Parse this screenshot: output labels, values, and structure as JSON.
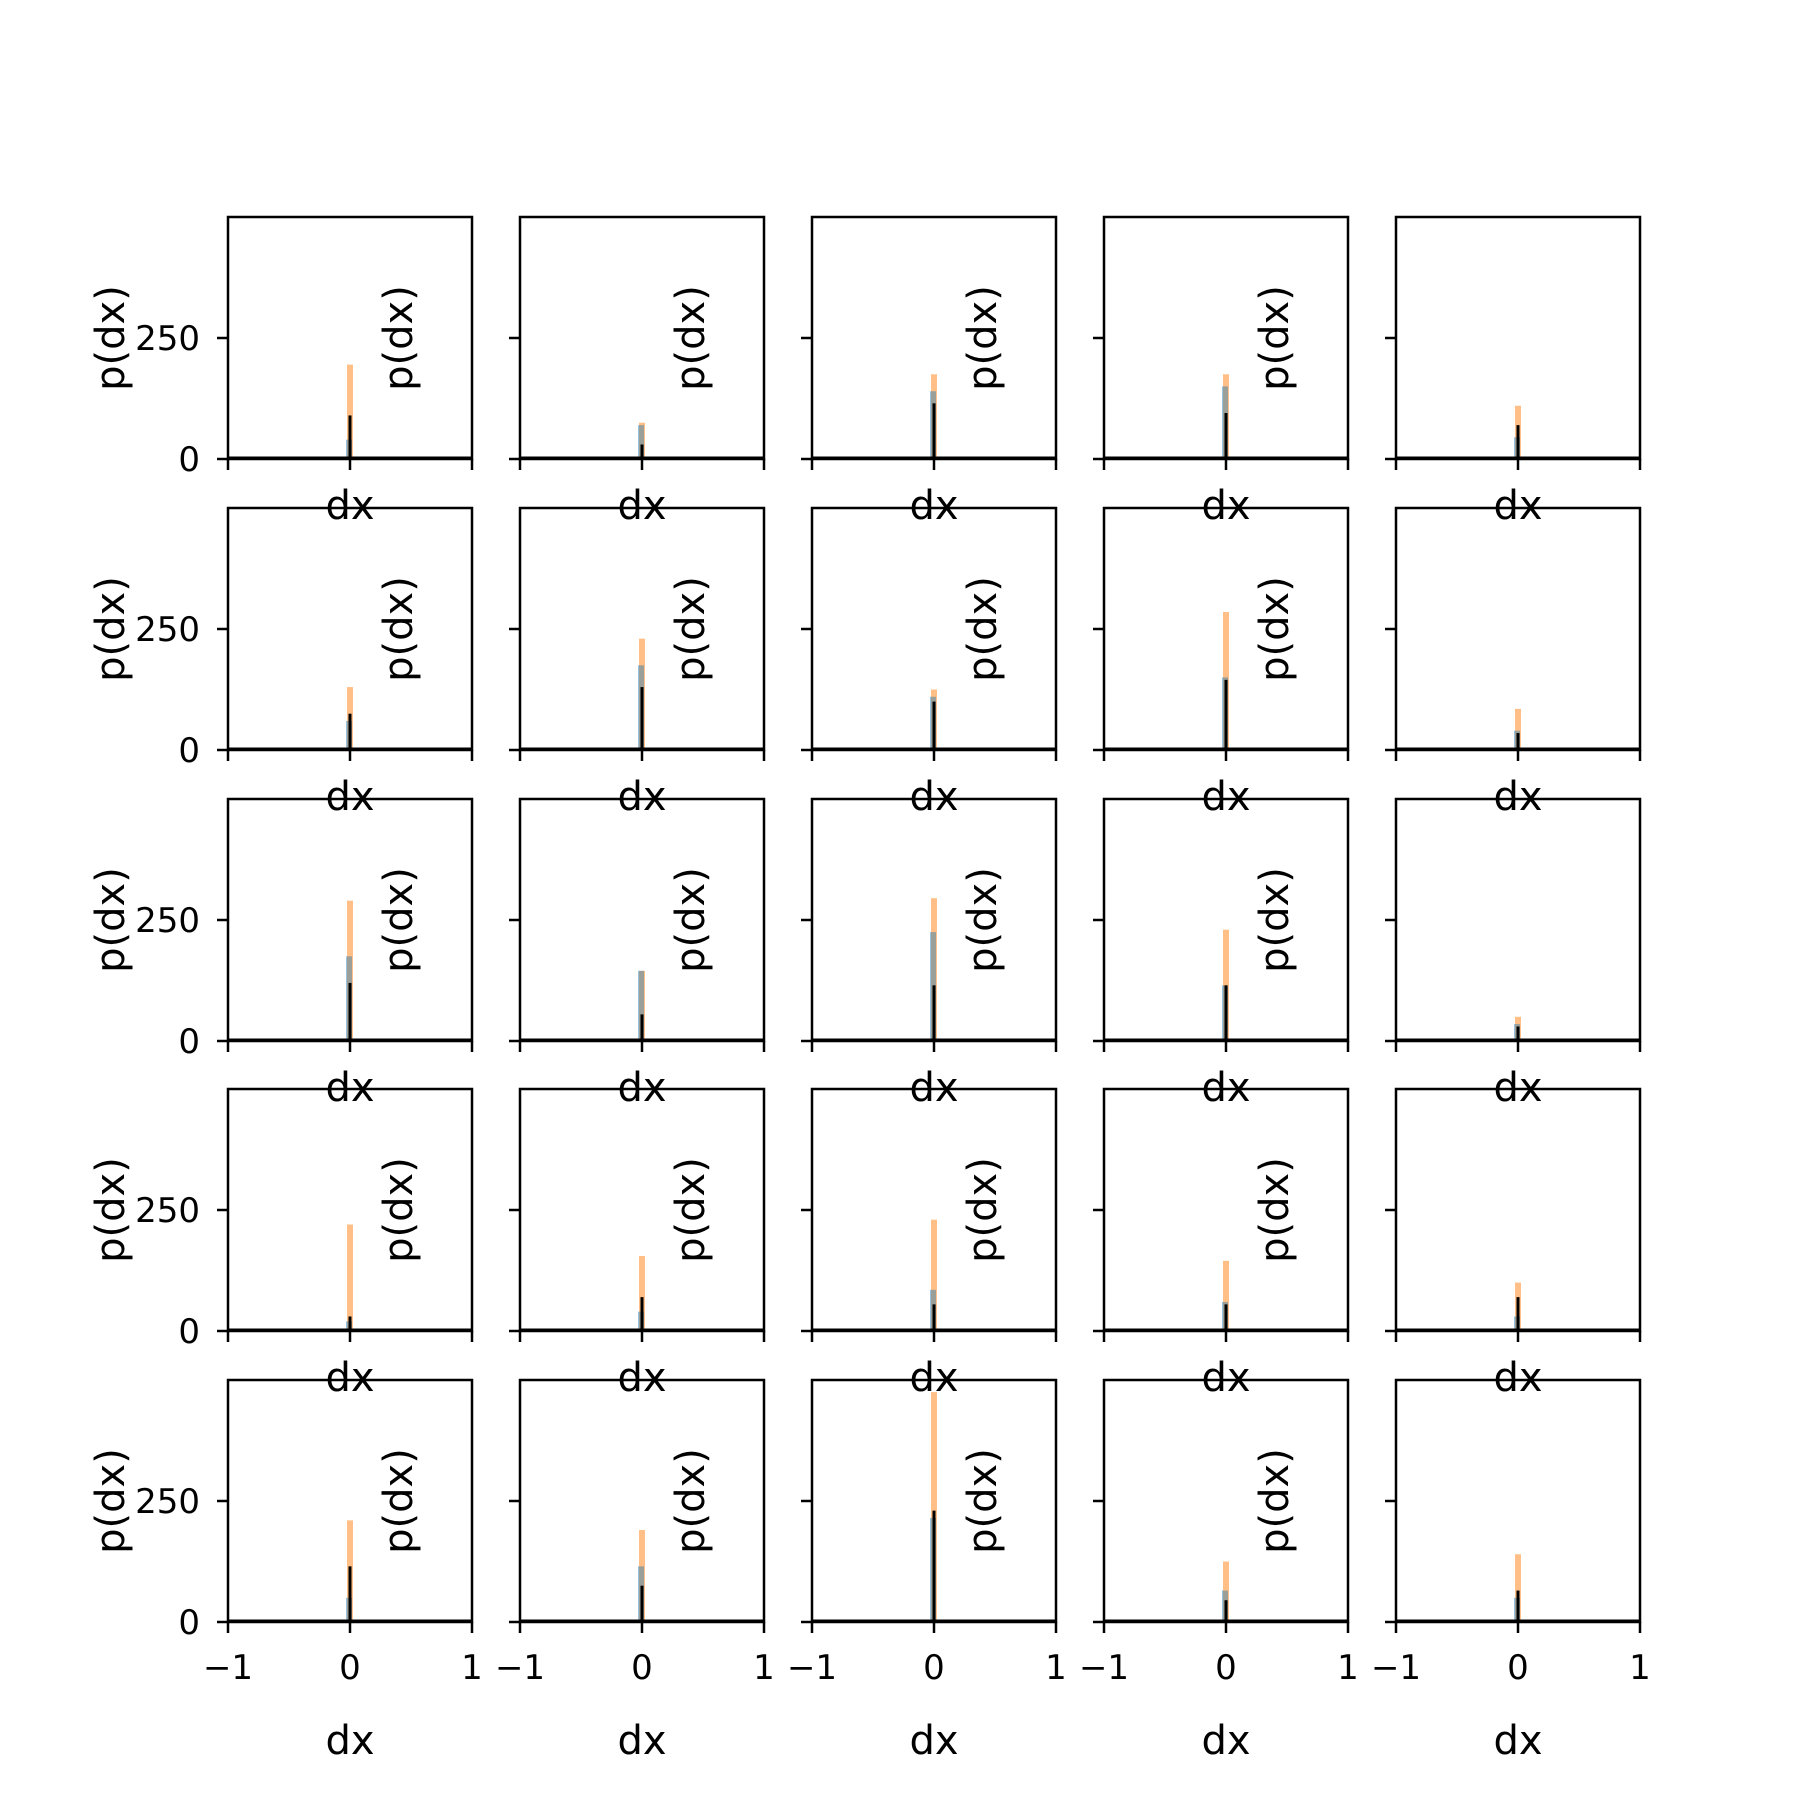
{
  "figure": {
    "rows": 5,
    "cols": 5,
    "colors": {
      "blue": "#1f77b4",
      "orange": "#ff7f0e",
      "black": "#000000"
    },
    "xlabel": "dx",
    "ylabel": "p(dx)",
    "xticks": [
      "−1",
      "0",
      "1"
    ],
    "yticks": [
      "0",
      "250"
    ],
    "xlim": [
      -1,
      1
    ],
    "ylim": [
      0,
      500
    ]
  },
  "chart_data": {
    "type": "histogram-grid",
    "xlabel": "dx",
    "ylabel": "p(dx)",
    "xlim": [
      -1,
      1
    ],
    "ylim": [
      0,
      500
    ],
    "grid": false,
    "panels": [
      {
        "orange": 195,
        "blue": 40,
        "black": 90
      },
      {
        "orange": 75,
        "blue": 70,
        "black": 30
      },
      {
        "orange": 175,
        "blue": 140,
        "black": 115
      },
      {
        "orange": 175,
        "blue": 150,
        "black": 95
      },
      {
        "orange": 110,
        "blue": 45,
        "black": 70
      },
      {
        "orange": 130,
        "blue": 60,
        "black": 75
      },
      {
        "orange": 230,
        "blue": 175,
        "black": 130
      },
      {
        "orange": 125,
        "blue": 110,
        "black": 100
      },
      {
        "orange": 285,
        "blue": 150,
        "black": 145
      },
      {
        "orange": 85,
        "blue": 40,
        "black": 35
      },
      {
        "orange": 290,
        "blue": 175,
        "black": 120
      },
      {
        "orange": 145,
        "blue": 145,
        "black": 55
      },
      {
        "orange": 295,
        "blue": 225,
        "black": 115
      },
      {
        "orange": 230,
        "blue": 115,
        "black": 115
      },
      {
        "orange": 50,
        "blue": 35,
        "black": 30
      },
      {
        "orange": 220,
        "blue": 20,
        "black": 30
      },
      {
        "orange": 155,
        "blue": 40,
        "black": 70
      },
      {
        "orange": 230,
        "blue": 85,
        "black": 55
      },
      {
        "orange": 145,
        "blue": 60,
        "black": 55
      },
      {
        "orange": 100,
        "blue": 30,
        "black": 70
      },
      {
        "orange": 210,
        "blue": 50,
        "black": 115
      },
      {
        "orange": 190,
        "blue": 115,
        "black": 75
      },
      {
        "orange": 475,
        "blue": 215,
        "black": 230
      },
      {
        "orange": 125,
        "blue": 65,
        "black": 45
      },
      {
        "orange": 140,
        "blue": 50,
        "black": 65
      }
    ]
  }
}
